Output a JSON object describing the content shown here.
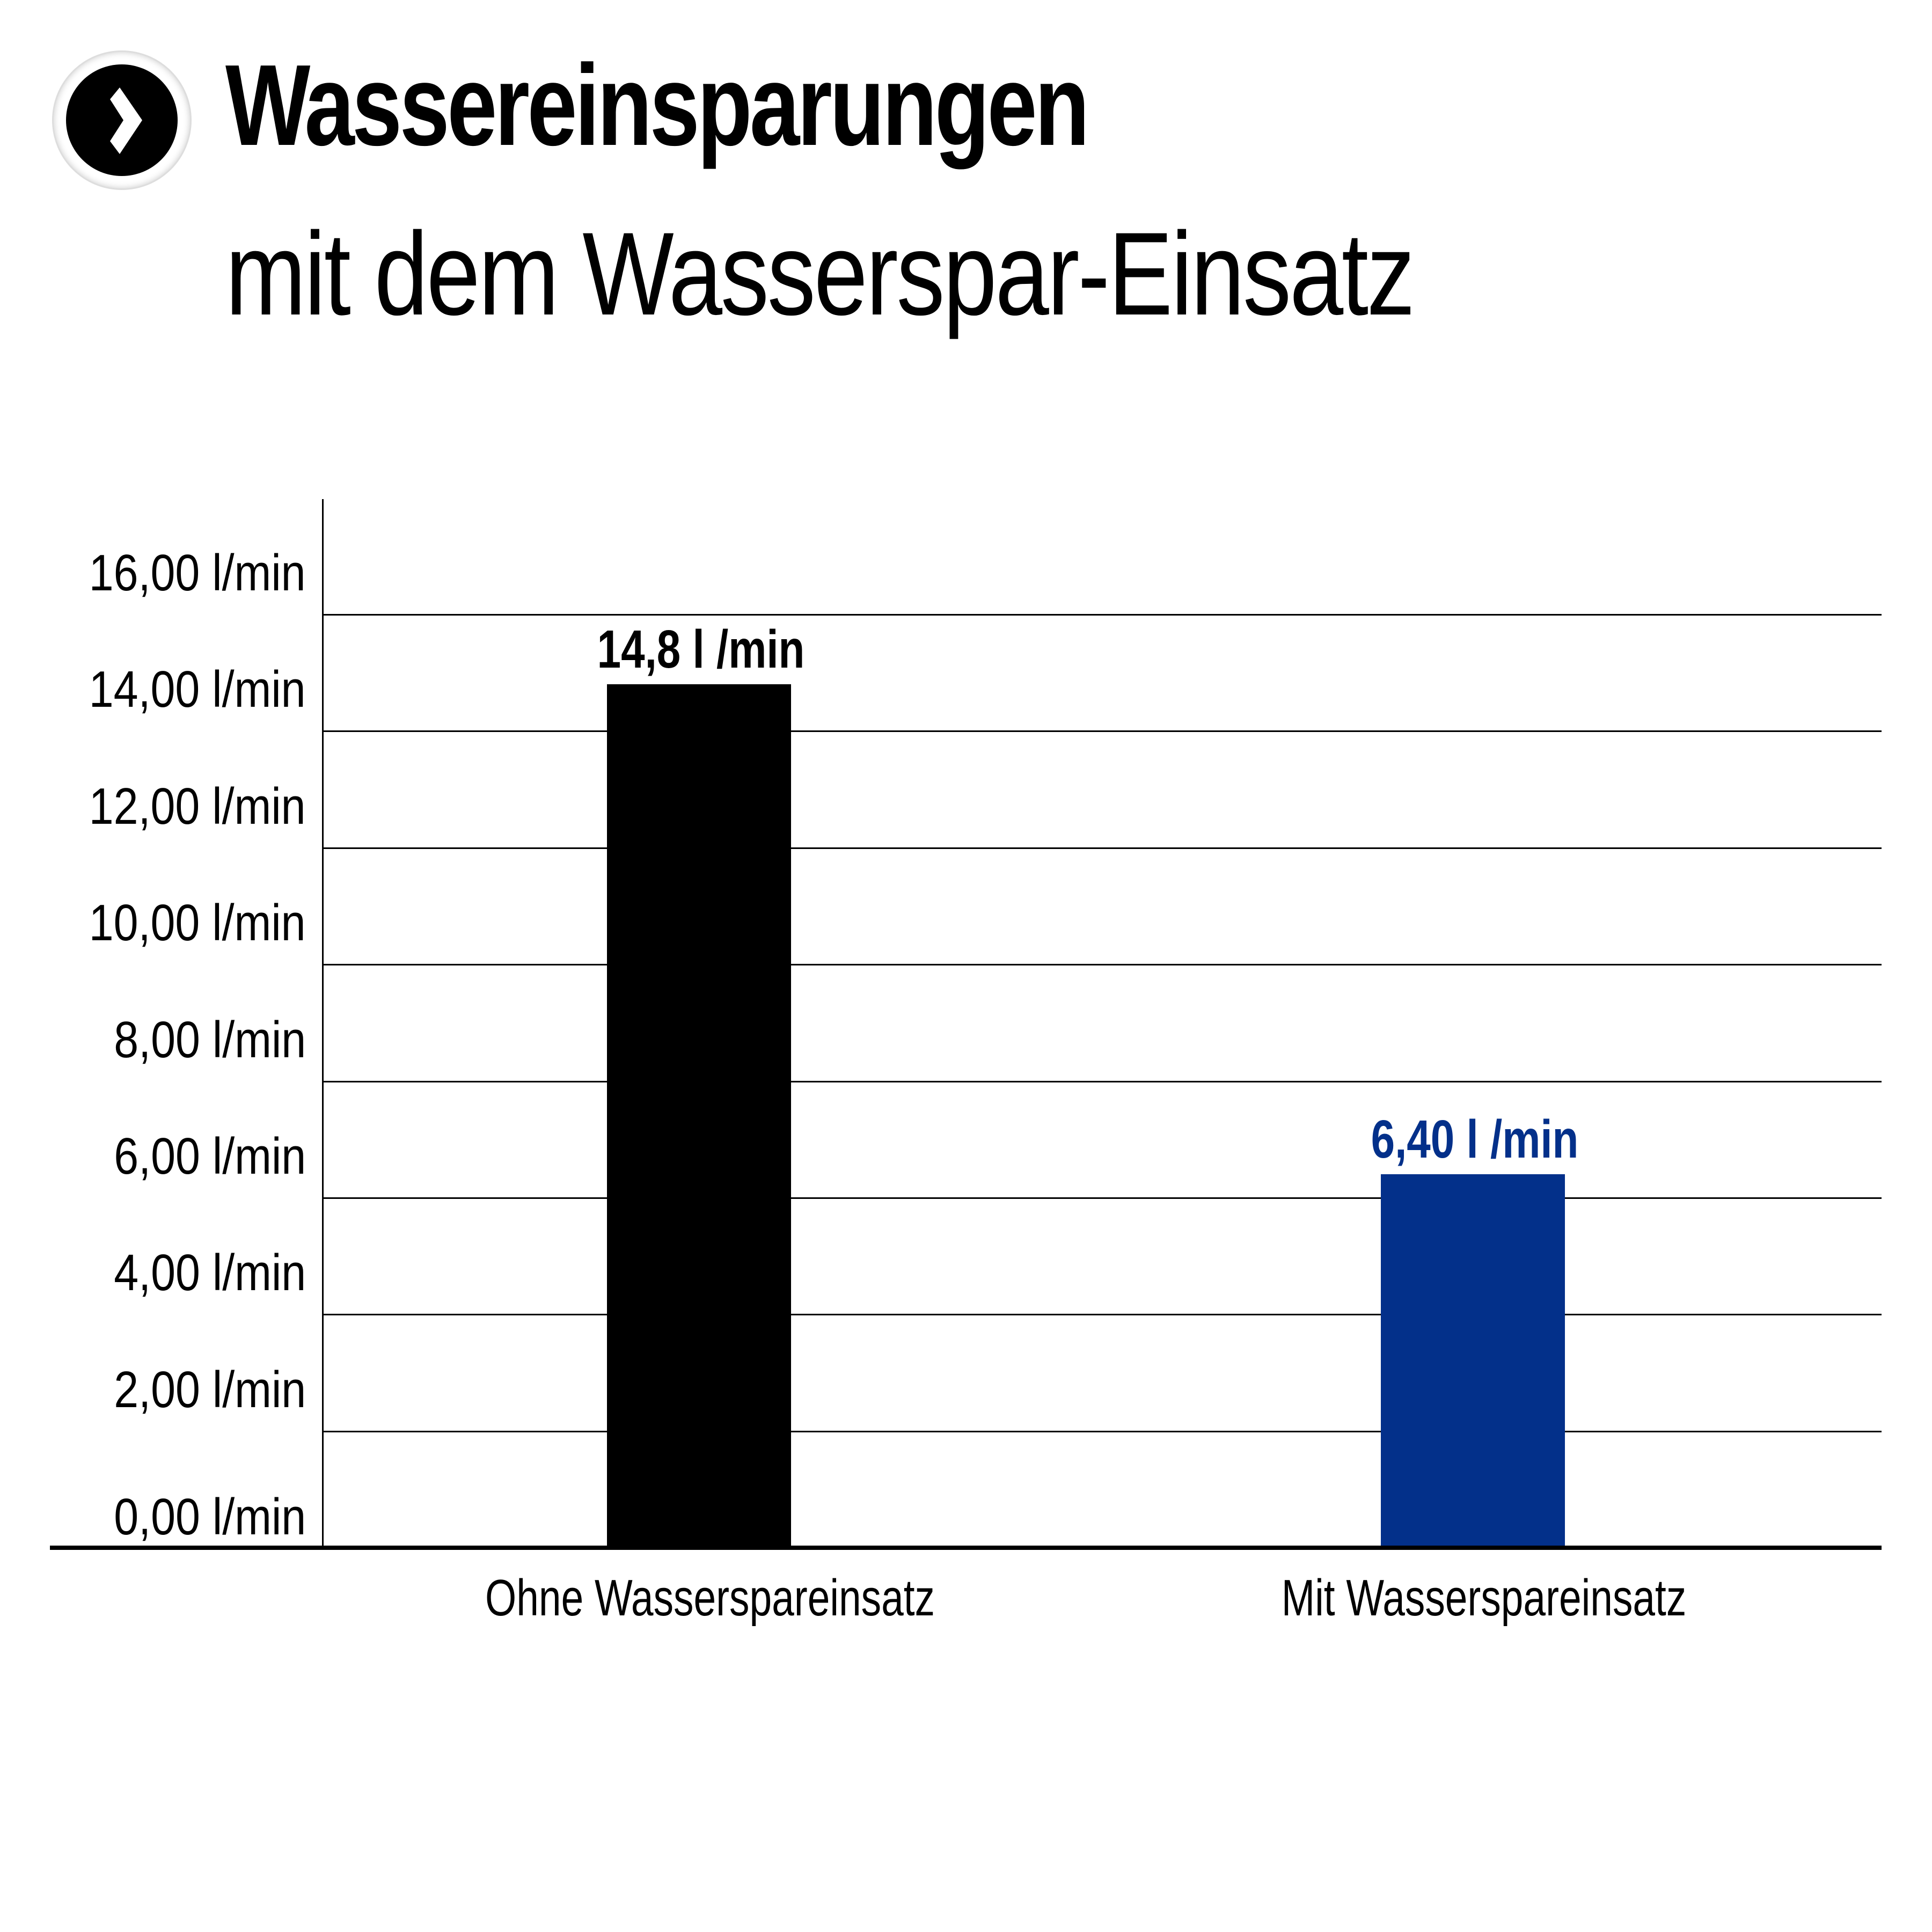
{
  "header": {
    "icon": "chevron-right-circle-icon",
    "title_line1": "Wassereinsparungen",
    "title_line2": "mit dem Wasserspar-Einsatz"
  },
  "colors": {
    "bar_without": "#000000",
    "bar_with": "#03308a",
    "label_without": "#000000",
    "label_with": "#03308a"
  },
  "chart_data": {
    "type": "bar",
    "title": "Wassereinsparungen mit dem Wasserspar-Einsatz",
    "categories": [
      "Ohne Wasserspareinsatz",
      "Mit Wasserspareinsatz"
    ],
    "values": [
      14.8,
      6.4
    ],
    "data_labels": [
      "14,8 l /min",
      "6,40 l /min"
    ],
    "xlabel": "",
    "ylabel": "",
    "unit": "l/min",
    "ylim": [
      0,
      16
    ],
    "yticks": [
      "0,00 l/min",
      "2,00 l/min",
      "4,00 l/min",
      "6,00 l/min",
      "8,00 l/min",
      "10,00 l/min",
      "12,00 l/min",
      "14,00 l/min",
      "16,00 l/min"
    ],
    "grid": true,
    "legend": "none"
  }
}
